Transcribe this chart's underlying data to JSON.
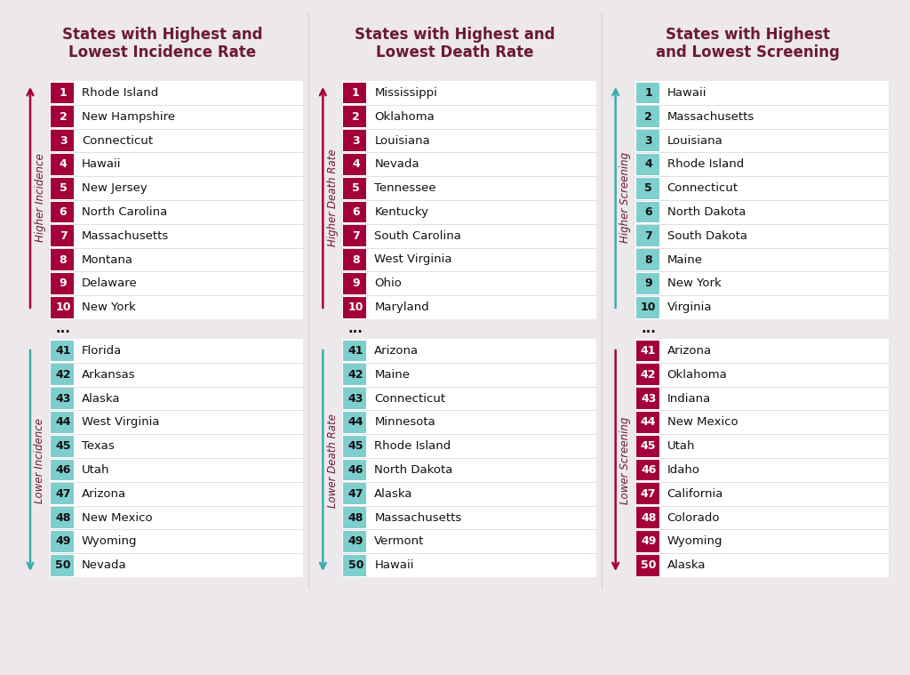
{
  "bg_color": "#ede8ec",
  "title_color": "#6b1a35",
  "label_color": "#6b1a35",
  "state_name_color": "#111111",
  "high_box_color": "#a3003b",
  "low_box_color": "#7ecece",
  "high_box_text_color": "#ffffff",
  "low_box_text_color": "#111111",
  "arrow_high_color": "#a3003b",
  "arrow_low_color": "#3aacac",
  "white_bg": "#ffffff",
  "divider_color": "#d8d0d8",
  "col1_title": "States with Highest and\nLowest Incidence Rate",
  "col2_title": "States with Highest and\nLowest Death Rate",
  "col3_title": "States with Highest\nand Lowest Screening",
  "col1_high_label": "Higher Incidence",
  "col1_low_label": "Lower Incidence",
  "col2_high_label": "Higher Death Rate",
  "col2_low_label": "Lower Death Rate",
  "col3_high_label": "Higher Screening",
  "col3_low_label": "Lower Screening",
  "col1_high": [
    "Rhode Island",
    "New Hampshire",
    "Connecticut",
    "Hawaii",
    "New Jersey",
    "North Carolina",
    "Massachusetts",
    "Montana",
    "Delaware",
    "New York"
  ],
  "col1_high_nums": [
    1,
    2,
    3,
    4,
    5,
    6,
    7,
    8,
    9,
    10
  ],
  "col1_low": [
    "Florida",
    "Arkansas",
    "Alaska",
    "West Virginia",
    "Texas",
    "Utah",
    "Arizona",
    "New Mexico",
    "Wyoming",
    "Nevada"
  ],
  "col1_low_nums": [
    41,
    42,
    43,
    44,
    45,
    46,
    47,
    48,
    49,
    50
  ],
  "col2_high": [
    "Mississippi",
    "Oklahoma",
    "Louisiana",
    "Nevada",
    "Tennessee",
    "Kentucky",
    "South Carolina",
    "West Virginia",
    "Ohio",
    "Maryland"
  ],
  "col2_high_nums": [
    1,
    2,
    3,
    4,
    5,
    6,
    7,
    8,
    9,
    10
  ],
  "col2_low": [
    "Arizona",
    "Maine",
    "Connecticut",
    "Minnesota",
    "Rhode Island",
    "North Dakota",
    "Alaska",
    "Massachusetts",
    "Vermont",
    "Hawaii"
  ],
  "col2_low_nums": [
    41,
    42,
    43,
    44,
    45,
    46,
    47,
    48,
    49,
    50
  ],
  "col3_high": [
    "Hawaii",
    "Massachusetts",
    "Louisiana",
    "Rhode Island",
    "Connecticut",
    "North Dakota",
    "South Dakota",
    "Maine",
    "New York",
    "Virginia"
  ],
  "col3_high_nums": [
    1,
    2,
    3,
    4,
    5,
    6,
    7,
    8,
    9,
    10
  ],
  "col3_low": [
    "Arizona",
    "Oklahoma",
    "Indiana",
    "New Mexico",
    "Utah",
    "Idaho",
    "California",
    "Colorado",
    "Wyoming",
    "Alaska"
  ],
  "col3_low_nums": [
    41,
    42,
    43,
    44,
    45,
    46,
    47,
    48,
    49,
    50
  ]
}
